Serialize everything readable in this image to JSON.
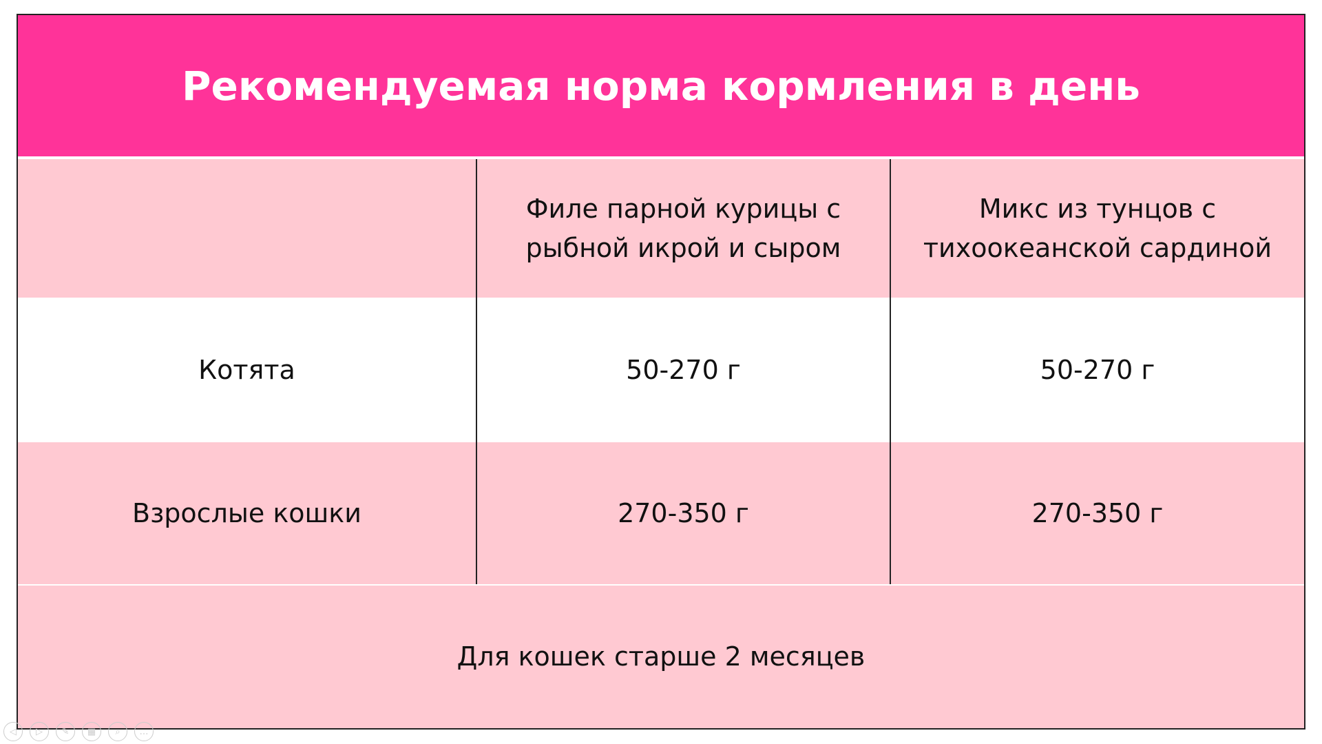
{
  "title": "Рекомендуемая норма кормления в день",
  "colors": {
    "header": "#ff3399",
    "row_pink": "#ffc9d2",
    "row_white": "#ffffff"
  },
  "table": {
    "headers": [
      "",
      "Филе парной курицы с рыбной икрой и сыром",
      "Микс из тунцов с тихоокеанской сардиной"
    ],
    "rows": [
      [
        "Котята",
        "50-270 г",
        "50-270 г"
      ],
      [
        "Взрослые кошки",
        "270-350 г",
        "270-350 г"
      ]
    ],
    "footer": "Для кошек старше 2 месяцев"
  },
  "nav_icons": [
    "previous-icon",
    "next-icon",
    "pen-icon",
    "slides-icon",
    "zoom-icon",
    "more-icon"
  ]
}
